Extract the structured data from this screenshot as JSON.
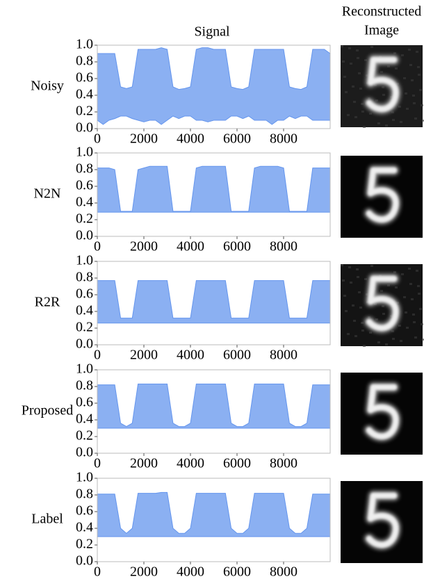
{
  "header": {
    "signal": "Signal",
    "image": [
      "Reconstructed",
      "Image"
    ]
  },
  "chart_data": [
    {
      "type": "band",
      "title": "Noisy",
      "x": [
        0,
        250,
        500,
        750,
        1000,
        1250,
        1500,
        1750,
        2000,
        2250,
        2500,
        2750,
        3000,
        3250,
        3500,
        3750,
        4000,
        4250,
        4500,
        4750,
        5000,
        5250,
        5500,
        5750,
        6000,
        6250,
        6500,
        6750,
        7000,
        7250,
        7500,
        7750,
        8000,
        8250,
        8500,
        8750,
        9000,
        9250,
        9500,
        9750,
        10000
      ],
      "series": [
        {
          "color": "#6495ed",
          "values": [
            0.9,
            0.9,
            0.9,
            0.9,
            0.5,
            0.48,
            0.5,
            0.95,
            0.95,
            0.95,
            0.95,
            0.97,
            0.95,
            0.5,
            0.47,
            0.48,
            0.5,
            0.95,
            0.97,
            0.97,
            0.95,
            0.95,
            0.95,
            0.5,
            0.48,
            0.47,
            0.5,
            0.95,
            0.95,
            0.95,
            0.95,
            0.95,
            0.95,
            0.5,
            0.48,
            0.47,
            0.5,
            0.95,
            0.95,
            0.95,
            0.9
          ]
        },
        {
          "color": "#6495ed",
          "values": [
            0.1,
            0.05,
            0.1,
            0.12,
            0.15,
            0.15,
            0.12,
            0.1,
            0.08,
            0.1,
            0.1,
            0.05,
            0.1,
            0.15,
            0.12,
            0.15,
            0.15,
            0.1,
            0.1,
            0.08,
            0.1,
            0.1,
            0.1,
            0.15,
            0.15,
            0.12,
            0.15,
            0.1,
            0.1,
            0.1,
            0.05,
            0.1,
            0.1,
            0.15,
            0.12,
            0.15,
            0.15,
            0.1,
            0.1,
            0.1,
            0.1
          ]
        }
      ],
      "xlim": [
        0,
        10000
      ],
      "xticks": [
        0,
        2000,
        4000,
        6000,
        8000
      ],
      "ylim": [
        0,
        1
      ],
      "yticks": [
        {
          "value": 0,
          "label": "0.0"
        },
        0.2,
        0.4,
        0.6,
        0.8,
        {
          "value": 1,
          "label": "1.0"
        }
      ]
    },
    {
      "type": "band",
      "title": "N2N",
      "x": [
        0,
        250,
        500,
        750,
        1000,
        1250,
        1500,
        1750,
        2000,
        2250,
        2500,
        2750,
        3000,
        3250,
        3500,
        3750,
        4000,
        4250,
        4500,
        4750,
        5000,
        5250,
        5500,
        5750,
        6000,
        6250,
        6500,
        6750,
        7000,
        7250,
        7500,
        7750,
        8000,
        8250,
        8500,
        8750,
        9000,
        9250,
        9500,
        9750,
        10000
      ],
      "series": [
        {
          "color": "#6495ed",
          "values": [
            0.82,
            0.82,
            0.82,
            0.8,
            0.3,
            0.3,
            0.3,
            0.8,
            0.82,
            0.84,
            0.84,
            0.84,
            0.84,
            0.3,
            0.3,
            0.3,
            0.3,
            0.82,
            0.84,
            0.84,
            0.84,
            0.84,
            0.84,
            0.3,
            0.3,
            0.3,
            0.3,
            0.82,
            0.84,
            0.84,
            0.84,
            0.84,
            0.82,
            0.3,
            0.3,
            0.3,
            0.3,
            0.82,
            0.82,
            0.82,
            0.82
          ]
        },
        {
          "color": "#6495ed",
          "values": [
            0.29,
            0.29,
            0.29,
            0.29,
            0.29,
            0.29,
            0.29,
            0.29,
            0.29,
            0.29,
            0.29,
            0.29,
            0.29,
            0.29,
            0.29,
            0.29,
            0.29,
            0.29,
            0.29,
            0.29,
            0.29,
            0.29,
            0.29,
            0.29,
            0.29,
            0.29,
            0.29,
            0.29,
            0.29,
            0.29,
            0.29,
            0.29,
            0.29,
            0.29,
            0.29,
            0.29,
            0.29,
            0.29,
            0.29,
            0.29,
            0.29
          ]
        }
      ],
      "xlim": [
        0,
        10000
      ],
      "xticks": [
        0,
        2000,
        4000,
        6000,
        8000
      ],
      "ylim": [
        0,
        1
      ],
      "yticks": [
        {
          "value": 0,
          "label": "0.0"
        },
        0.2,
        0.4,
        0.6,
        0.8,
        {
          "value": 1,
          "label": "1.0"
        }
      ]
    },
    {
      "type": "band",
      "title": "R2R",
      "x": [
        0,
        250,
        500,
        750,
        1000,
        1250,
        1500,
        1750,
        2000,
        2250,
        2500,
        2750,
        3000,
        3250,
        3500,
        3750,
        4000,
        4250,
        4500,
        4750,
        5000,
        5250,
        5500,
        5750,
        6000,
        6250,
        6500,
        6750,
        7000,
        7250,
        7500,
        7750,
        8000,
        8250,
        8500,
        8750,
        9000,
        9250,
        9500,
        9750,
        10000
      ],
      "series": [
        {
          "color": "#6495ed",
          "values": [
            0.77,
            0.77,
            0.77,
            0.77,
            0.32,
            0.32,
            0.32,
            0.77,
            0.77,
            0.77,
            0.77,
            0.77,
            0.77,
            0.32,
            0.32,
            0.32,
            0.32,
            0.77,
            0.77,
            0.77,
            0.77,
            0.77,
            0.77,
            0.32,
            0.32,
            0.32,
            0.32,
            0.77,
            0.77,
            0.77,
            0.77,
            0.77,
            0.77,
            0.32,
            0.32,
            0.32,
            0.32,
            0.77,
            0.77,
            0.77,
            0.77
          ]
        },
        {
          "color": "#6495ed",
          "values": [
            0.26,
            0.26,
            0.26,
            0.26,
            0.26,
            0.26,
            0.26,
            0.26,
            0.26,
            0.26,
            0.26,
            0.26,
            0.26,
            0.26,
            0.26,
            0.26,
            0.26,
            0.26,
            0.26,
            0.26,
            0.26,
            0.26,
            0.26,
            0.26,
            0.26,
            0.26,
            0.26,
            0.26,
            0.26,
            0.26,
            0.26,
            0.26,
            0.26,
            0.26,
            0.26,
            0.26,
            0.26,
            0.26,
            0.26,
            0.26,
            0.26
          ]
        }
      ],
      "xlim": [
        0,
        10000
      ],
      "xticks": [
        0,
        2000,
        4000,
        6000,
        8000
      ],
      "ylim": [
        0,
        1
      ],
      "yticks": [
        {
          "value": 0,
          "label": "0.0"
        },
        0.2,
        0.4,
        0.6,
        0.8,
        {
          "value": 1,
          "label": "1.0"
        }
      ]
    },
    {
      "type": "band",
      "title": "Proposed",
      "x": [
        0,
        250,
        500,
        750,
        1000,
        1250,
        1500,
        1750,
        2000,
        2250,
        2500,
        2750,
        3000,
        3250,
        3500,
        3750,
        4000,
        4250,
        4500,
        4750,
        5000,
        5250,
        5500,
        5750,
        6000,
        6250,
        6500,
        6750,
        7000,
        7250,
        7500,
        7750,
        8000,
        8250,
        8500,
        8750,
        9000,
        9250,
        9500,
        9750,
        10000
      ],
      "series": [
        {
          "color": "#6495ed",
          "values": [
            0.82,
            0.82,
            0.82,
            0.82,
            0.36,
            0.32,
            0.36,
            0.83,
            0.83,
            0.83,
            0.83,
            0.83,
            0.83,
            0.36,
            0.32,
            0.32,
            0.36,
            0.83,
            0.83,
            0.83,
            0.83,
            0.83,
            0.83,
            0.36,
            0.32,
            0.32,
            0.36,
            0.83,
            0.83,
            0.83,
            0.83,
            0.83,
            0.83,
            0.36,
            0.32,
            0.32,
            0.36,
            0.82,
            0.82,
            0.82,
            0.82
          ]
        },
        {
          "color": "#6495ed",
          "values": [
            0.3,
            0.3,
            0.3,
            0.3,
            0.3,
            0.3,
            0.3,
            0.3,
            0.3,
            0.3,
            0.3,
            0.3,
            0.3,
            0.3,
            0.3,
            0.3,
            0.3,
            0.3,
            0.3,
            0.3,
            0.3,
            0.3,
            0.3,
            0.3,
            0.3,
            0.3,
            0.3,
            0.3,
            0.3,
            0.3,
            0.3,
            0.3,
            0.3,
            0.3,
            0.3,
            0.3,
            0.3,
            0.3,
            0.3,
            0.3,
            0.3
          ]
        }
      ],
      "xlim": [
        0,
        10000
      ],
      "xticks": [
        0,
        2000,
        4000,
        6000,
        8000
      ],
      "ylim": [
        0,
        1
      ],
      "yticks": [
        {
          "value": 0,
          "label": "0.0"
        },
        0.2,
        0.4,
        0.6,
        0.8,
        {
          "value": 1,
          "label": "1.0"
        }
      ]
    },
    {
      "type": "band",
      "title": "Label",
      "x": [
        0,
        250,
        500,
        750,
        1000,
        1250,
        1500,
        1750,
        2000,
        2250,
        2500,
        2750,
        3000,
        3250,
        3500,
        3750,
        4000,
        4250,
        4500,
        4750,
        5000,
        5250,
        5500,
        5750,
        6000,
        6250,
        6500,
        6750,
        7000,
        7250,
        7500,
        7750,
        8000,
        8250,
        8500,
        8750,
        9000,
        9250,
        9500,
        9750,
        10000
      ],
      "series": [
        {
          "color": "#6495ed",
          "values": [
            0.81,
            0.81,
            0.81,
            0.81,
            0.4,
            0.34,
            0.4,
            0.82,
            0.82,
            0.82,
            0.82,
            0.83,
            0.83,
            0.4,
            0.34,
            0.34,
            0.4,
            0.82,
            0.82,
            0.82,
            0.82,
            0.82,
            0.82,
            0.4,
            0.34,
            0.34,
            0.4,
            0.82,
            0.82,
            0.82,
            0.82,
            0.82,
            0.82,
            0.4,
            0.34,
            0.34,
            0.4,
            0.81,
            0.81,
            0.81,
            0.81
          ]
        },
        {
          "color": "#6495ed",
          "values": [
            0.3,
            0.3,
            0.3,
            0.3,
            0.3,
            0.3,
            0.3,
            0.3,
            0.3,
            0.3,
            0.3,
            0.3,
            0.3,
            0.3,
            0.3,
            0.3,
            0.3,
            0.3,
            0.3,
            0.3,
            0.3,
            0.3,
            0.3,
            0.3,
            0.3,
            0.3,
            0.3,
            0.3,
            0.3,
            0.3,
            0.3,
            0.3,
            0.3,
            0.3,
            0.3,
            0.3,
            0.3,
            0.3,
            0.3,
            0.3,
            0.3
          ]
        }
      ],
      "xlim": [
        0,
        10000
      ],
      "xticks": [
        0,
        2000,
        4000,
        6000,
        8000
      ],
      "ylim": [
        0,
        1
      ],
      "yticks": [
        {
          "value": 0,
          "label": "0.0"
        },
        0.2,
        0.4,
        0.6,
        0.8,
        {
          "value": 1,
          "label": "1.0"
        }
      ]
    }
  ]
}
